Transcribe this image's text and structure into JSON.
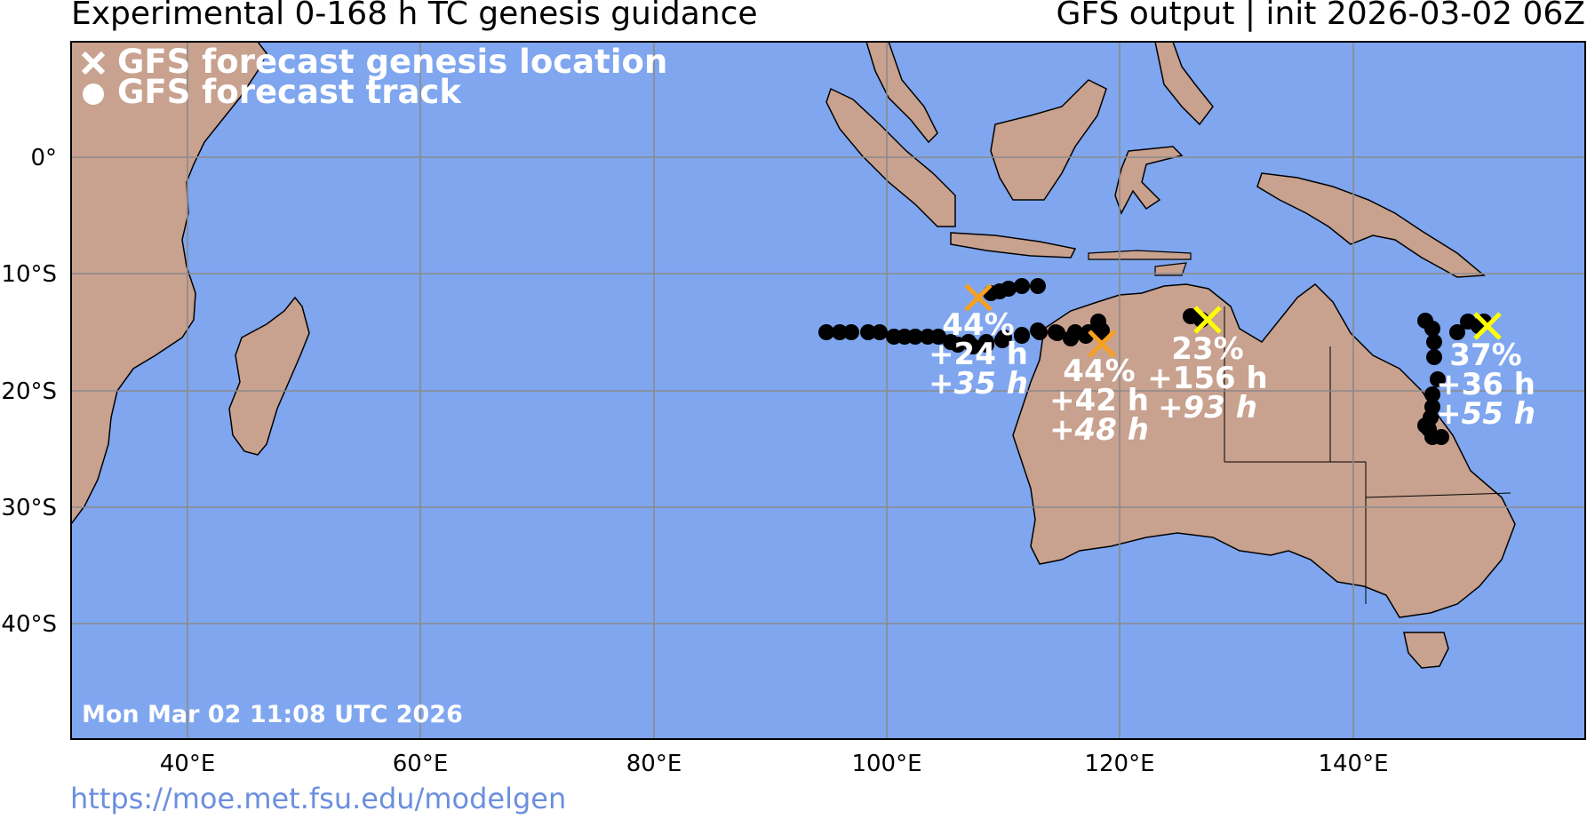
{
  "header": {
    "title_left": "Experimental 0-168 h TC genesis guidance",
    "title_right": "GFS output | init 2026-03-02 06Z"
  },
  "legend": {
    "genesis_label": "GFS forecast genesis location",
    "track_label": "GFS forecast track"
  },
  "timestamp": "Mon Mar 02 11:08 UTC 2026",
  "footer_url": "https://moe.met.fsu.edu/modelgen",
  "axes": {
    "lon_ticks": [
      "40°E",
      "60°E",
      "80°E",
      "100°E",
      "120°E",
      "140°E"
    ],
    "lat_ticks": [
      "0°",
      "10°S",
      "20°S",
      "30°S",
      "40°S"
    ]
  },
  "colors": {
    "ocean": "#7fa6ef",
    "land": "#c8a18f",
    "grid": "#8a8a8a",
    "high_prob_marker": "#f5a020",
    "low_prob_marker": "#ffff00",
    "track_dots": "#000000"
  },
  "systems": [
    {
      "prob": "44%",
      "lead": "+24 h",
      "lead2": "+35 h",
      "marker_color": "#f5a020"
    },
    {
      "prob": "44%",
      "lead": "+42 h",
      "lead2": "+48 h",
      "marker_color": "#f5a020"
    },
    {
      "prob": "23%",
      "lead": "+156 h",
      "lead2": "+93 h",
      "marker_color": "#ffff00"
    },
    {
      "prob": "37%",
      "lead": "+36 h",
      "lead2": "+55 h",
      "marker_color": "#ffff00"
    }
  ]
}
